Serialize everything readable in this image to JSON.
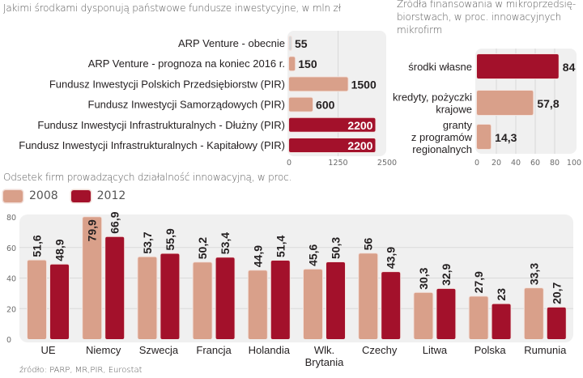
{
  "colors": {
    "light": "#d9a08a",
    "dark": "#a3112b",
    "panel": "#f0f0f0",
    "grid": "#d9d9d9"
  },
  "chart_data": [
    {
      "type": "bar",
      "orientation": "horizontal",
      "title": "Jakimi środkami dysponują państwowe fundusze inwestycyjne, w mln zł",
      "categories": [
        "ARP Venture - obecnie",
        "ARP Venture - prognoza na koniec 2016 r.",
        "Fundusz Inwestycji Polskich Przedsiębiorstw (PIR)",
        "Fundusz Inwestycji Samorządowych (PIR)",
        "Fundusz Inwestycji Infrastrukturalnych - Dłużny (PIR)",
        "Fundusz Inwestycji Infrastrukturalnych - Kapitałowy (PIR)"
      ],
      "values": [
        55,
        150,
        1500,
        600,
        2200,
        2200
      ],
      "value_labels": [
        "55",
        "150",
        "1500",
        "600",
        "2200",
        "2200"
      ],
      "bar_colors": [
        "#d9d9d9",
        "#d9a08a",
        "#d9a08a",
        "#d9a08a",
        "#a3112b",
        "#a3112b"
      ],
      "xlim": [
        0,
        2500
      ],
      "xticks": [
        "0",
        "1250",
        "2500"
      ],
      "grid": true
    },
    {
      "type": "bar",
      "orientation": "horizontal",
      "title_lines": [
        "Źródła finansowania w mikroprzedsię-",
        "biorstwach, w proc. innowacyjnych",
        "mikrofirm"
      ],
      "categories": [
        [
          "środki własne"
        ],
        [
          "kredyty, pożyczki",
          "krajowe"
        ],
        [
          "granty",
          "z programów",
          "regionalnych"
        ]
      ],
      "values": [
        84,
        57.8,
        14.3
      ],
      "value_labels": [
        "84",
        "57,8",
        "14,3"
      ],
      "bar_colors": [
        "#a3112b",
        "#d9a08a",
        "#d9a08a"
      ],
      "xlim": [
        0,
        100
      ],
      "xticks": [
        "0",
        "20",
        "40",
        "60",
        "80",
        "100"
      ],
      "grid": true
    },
    {
      "type": "bar",
      "orientation": "vertical",
      "title": "Odsetek firm prowadzących działalność innowacyjną, w proc.",
      "legend": [
        "2008",
        "2012"
      ],
      "legend_position": "top-left",
      "categories": [
        [
          "UE"
        ],
        [
          "Niemcy"
        ],
        [
          "Szwecja"
        ],
        [
          "Francja"
        ],
        [
          "Holandia"
        ],
        [
          "Wlk.",
          "Brytania"
        ],
        [
          "Czechy"
        ],
        [
          "Litwa"
        ],
        [
          "Polska"
        ],
        [
          "Rumunia"
        ]
      ],
      "series": [
        {
          "name": "2008",
          "color": "#d9a08a",
          "values": [
            51.6,
            79.9,
            53.7,
            50.2,
            44.9,
            45.6,
            56,
            30.3,
            27.9,
            33.3
          ],
          "value_labels": [
            "51,6",
            "79,9",
            "53,7",
            "50,2",
            "44,9",
            "45,6",
            "56",
            "30,3",
            "27,9",
            "33,3"
          ]
        },
        {
          "name": "2012",
          "color": "#a3112b",
          "values": [
            48.9,
            66.9,
            55.9,
            53.4,
            51.4,
            50.3,
            43.9,
            32.9,
            23,
            20.7
          ],
          "value_labels": [
            "48,9",
            "66,9",
            "55,9",
            "53,4",
            "51,4",
            "50,3",
            "43,9",
            "32,9",
            "23",
            "20,7"
          ]
        }
      ],
      "ylim": [
        0,
        80
      ],
      "yticks": [
        "0",
        "20",
        "40",
        "60",
        "80"
      ],
      "grid": true
    }
  ],
  "source": "źródło: PARP, MR,PIR, Eurostat"
}
